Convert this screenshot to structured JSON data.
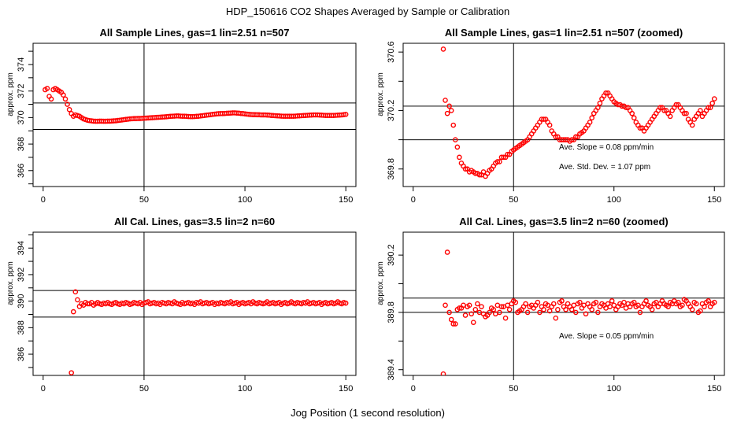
{
  "title": "HDP_150616  CO2 Shapes Averaged by Sample or Calibration",
  "xlabel": "Jog Position (1 second resolution)",
  "colors": {
    "points": "#ff0000",
    "lines": "#000000"
  },
  "chart_data": [
    {
      "type": "scatter",
      "title": "All Sample Lines, gas=1 lin=2.51 n=507",
      "ylabel": "approx. ppm",
      "xlim": [
        -5,
        155
      ],
      "ylim": [
        364.8,
        375.6
      ],
      "xticks": [
        "0",
        "50",
        "100",
        "150"
      ],
      "yticks": [
        "366",
        "368",
        "370",
        "372",
        "374"
      ],
      "vline": 50,
      "hlines": [
        369.1,
        371.1
      ],
      "annotations": [],
      "x": [
        1,
        2,
        3,
        4,
        5,
        6,
        7,
        8,
        9,
        10,
        11,
        12,
        13,
        14,
        15,
        16,
        17,
        18,
        19,
        20,
        21,
        22,
        23,
        24,
        25,
        26,
        27,
        28,
        29,
        30,
        31,
        32,
        33,
        34,
        35,
        36,
        37,
        38,
        39,
        40,
        41,
        42,
        43,
        44,
        45,
        46,
        47,
        48,
        49,
        50,
        51,
        52,
        53,
        54,
        55,
        56,
        57,
        58,
        59,
        60,
        61,
        62,
        63,
        64,
        65,
        66,
        67,
        68,
        69,
        70,
        71,
        72,
        73,
        74,
        75,
        76,
        77,
        78,
        79,
        80,
        81,
        82,
        83,
        84,
        85,
        86,
        87,
        88,
        89,
        90,
        91,
        92,
        93,
        94,
        95,
        96,
        97,
        98,
        99,
        100,
        101,
        102,
        103,
        104,
        105,
        106,
        107,
        108,
        109,
        110,
        111,
        112,
        113,
        114,
        115,
        116,
        117,
        118,
        119,
        120,
        121,
        122,
        123,
        124,
        125,
        126,
        127,
        128,
        129,
        130,
        131,
        132,
        133,
        134,
        135,
        136,
        137,
        138,
        139,
        140,
        141,
        142,
        143,
        144,
        145,
        146,
        147,
        148,
        149,
        150
      ],
      "y": [
        372.1,
        372.2,
        371.6,
        371.4,
        372.1,
        372.2,
        372.1,
        372.0,
        371.9,
        371.7,
        371.4,
        371.0,
        370.6,
        370.3,
        370.1,
        370.2,
        370.15,
        370.1,
        370.0,
        369.9,
        369.85,
        369.8,
        369.77,
        369.75,
        369.73,
        369.72,
        369.72,
        369.73,
        369.73,
        369.72,
        369.72,
        369.73,
        369.73,
        369.74,
        369.75,
        369.76,
        369.78,
        369.8,
        369.82,
        369.84,
        369.86,
        369.88,
        369.9,
        369.91,
        369.92,
        369.92,
        369.93,
        369.93,
        369.94,
        369.95,
        369.96,
        369.97,
        369.98,
        369.99,
        370.0,
        370.01,
        370.02,
        370.03,
        370.04,
        370.05,
        370.06,
        370.08,
        370.09,
        370.1,
        370.11,
        370.12,
        370.12,
        370.11,
        370.1,
        370.1,
        370.09,
        370.08,
        370.07,
        370.07,
        370.08,
        370.09,
        370.1,
        370.12,
        370.14,
        370.16,
        370.18,
        370.2,
        370.22,
        370.24,
        370.26,
        370.28,
        370.29,
        370.3,
        370.3,
        370.31,
        370.32,
        370.33,
        370.34,
        370.35,
        370.35,
        370.34,
        370.33,
        370.31,
        370.3,
        370.28,
        370.26,
        370.24,
        370.23,
        370.22,
        370.22,
        370.21,
        370.21,
        370.2,
        370.2,
        370.2,
        370.19,
        370.18,
        370.16,
        370.15,
        370.14,
        370.13,
        370.12,
        370.11,
        370.1,
        370.1,
        370.1,
        370.1,
        370.1,
        370.1,
        370.11,
        370.12,
        370.13,
        370.14,
        370.15,
        370.16,
        370.17,
        370.18,
        370.19,
        370.2,
        370.2,
        370.2,
        370.19,
        370.18,
        370.17,
        370.16,
        370.16,
        370.16,
        370.16,
        370.16,
        370.17,
        370.18,
        370.19,
        370.2,
        370.22,
        370.24
      ]
    },
    {
      "type": "scatter",
      "title": "All Sample Lines, gas=1 lin=2.51 n=507 (zoomed)",
      "ylabel": "approx. ppm",
      "xlim": [
        -5,
        155
      ],
      "ylim": [
        369.68,
        370.66
      ],
      "xticks": [
        "0",
        "50",
        "100",
        "150"
      ],
      "yticks": [
        "369.8",
        "370.2",
        "370.6"
      ],
      "vline": 50,
      "hlines": [
        370.0,
        370.23
      ],
      "annotations": [
        "Ave. Slope =  0.08  ppm/min",
        "Ave. Std. Dev. =  1.07  ppm"
      ],
      "x": [
        15,
        16,
        17,
        18,
        19,
        20,
        21,
        22,
        23,
        24,
        25,
        26,
        27,
        28,
        29,
        30,
        31,
        32,
        33,
        34,
        35,
        36,
        37,
        38,
        39,
        40,
        41,
        42,
        43,
        44,
        45,
        46,
        47,
        48,
        49,
        50,
        51,
        52,
        53,
        54,
        55,
        56,
        57,
        58,
        59,
        60,
        61,
        62,
        63,
        64,
        65,
        66,
        67,
        68,
        69,
        70,
        71,
        72,
        73,
        74,
        75,
        76,
        77,
        78,
        79,
        80,
        81,
        82,
        83,
        84,
        85,
        86,
        87,
        88,
        89,
        90,
        91,
        92,
        93,
        94,
        95,
        96,
        97,
        98,
        99,
        100,
        101,
        102,
        103,
        104,
        105,
        106,
        107,
        108,
        109,
        110,
        111,
        112,
        113,
        114,
        115,
        116,
        117,
        118,
        119,
        120,
        121,
        122,
        123,
        124,
        125,
        126,
        127,
        128,
        129,
        130,
        131,
        132,
        133,
        134,
        135,
        136,
        137,
        138,
        139,
        140,
        141,
        142,
        143,
        144,
        145,
        146,
        147,
        148,
        149,
        150
      ],
      "y": [
        370.62,
        370.27,
        370.18,
        370.23,
        370.2,
        370.1,
        370.0,
        369.95,
        369.88,
        369.84,
        369.82,
        369.8,
        369.8,
        369.78,
        369.79,
        369.78,
        369.77,
        369.77,
        369.76,
        369.76,
        369.78,
        369.75,
        369.77,
        369.79,
        369.8,
        369.82,
        369.84,
        369.85,
        369.85,
        369.88,
        369.88,
        369.88,
        369.9,
        369.9,
        369.92,
        369.93,
        369.94,
        369.95,
        369.96,
        369.97,
        369.98,
        369.99,
        370.0,
        370.02,
        370.04,
        370.06,
        370.08,
        370.1,
        370.12,
        370.14,
        370.14,
        370.14,
        370.12,
        370.1,
        370.06,
        370.04,
        370.02,
        370.02,
        370.0,
        370.0,
        370.0,
        370.0,
        370.0,
        369.99,
        370.0,
        370.0,
        370.02,
        370.02,
        370.04,
        370.05,
        370.06,
        370.08,
        370.1,
        370.12,
        370.15,
        370.18,
        370.2,
        370.22,
        370.25,
        370.28,
        370.3,
        370.32,
        370.32,
        370.3,
        370.28,
        370.26,
        370.25,
        370.24,
        370.24,
        370.23,
        370.23,
        370.22,
        370.22,
        370.2,
        370.18,
        370.15,
        370.12,
        370.1,
        370.08,
        370.08,
        370.06,
        370.08,
        370.1,
        370.12,
        370.14,
        370.16,
        370.18,
        370.2,
        370.22,
        370.22,
        370.2,
        370.2,
        370.18,
        370.16,
        370.2,
        370.22,
        370.24,
        370.24,
        370.22,
        370.2,
        370.18,
        370.18,
        370.14,
        370.12,
        370.1,
        370.14,
        370.16,
        370.18,
        370.2,
        370.16,
        370.18,
        370.2,
        370.22,
        370.22,
        370.25,
        370.28
      ]
    },
    {
      "type": "scatter",
      "title": "All Cal. Lines, gas=3.5 lin=2 n=60",
      "ylabel": "approx. ppm",
      "xlim": [
        -5,
        155
      ],
      "ylim": [
        384.4,
        395.2
      ],
      "xticks": [
        "0",
        "50",
        "100",
        "150"
      ],
      "yticks": [
        "386",
        "388",
        "390",
        "392",
        "394"
      ],
      "vline": 50,
      "hlines": [
        388.8,
        390.8
      ],
      "annotations": [],
      "x": [
        14,
        15,
        16,
        17,
        18,
        19,
        20,
        21,
        22,
        23,
        24,
        25,
        26,
        27,
        28,
        29,
        30,
        31,
        32,
        33,
        34,
        35,
        36,
        37,
        38,
        39,
        40,
        41,
        42,
        43,
        44,
        45,
        46,
        47,
        48,
        49,
        50,
        51,
        52,
        53,
        54,
        55,
        56,
        57,
        58,
        59,
        60,
        61,
        62,
        63,
        64,
        65,
        66,
        67,
        68,
        69,
        70,
        71,
        72,
        73,
        74,
        75,
        76,
        77,
        78,
        79,
        80,
        81,
        82,
        83,
        84,
        85,
        86,
        87,
        88,
        89,
        90,
        91,
        92,
        93,
        94,
        95,
        96,
        97,
        98,
        99,
        100,
        101,
        102,
        103,
        104,
        105,
        106,
        107,
        108,
        109,
        110,
        111,
        112,
        113,
        114,
        115,
        116,
        117,
        118,
        119,
        120,
        121,
        122,
        123,
        124,
        125,
        126,
        127,
        128,
        129,
        130,
        131,
        132,
        133,
        134,
        135,
        136,
        137,
        138,
        139,
        140,
        141,
        142,
        143,
        144,
        145,
        146,
        147,
        148,
        149,
        150
      ],
      "y": [
        384.6,
        389.2,
        390.7,
        390.1,
        389.6,
        389.8,
        389.7,
        389.9,
        389.8,
        389.8,
        389.9,
        389.7,
        389.8,
        389.9,
        389.8,
        389.75,
        389.85,
        389.8,
        389.9,
        389.8,
        389.75,
        389.85,
        389.9,
        389.8,
        389.75,
        389.85,
        389.8,
        389.9,
        389.85,
        389.75,
        389.8,
        389.9,
        389.85,
        389.8,
        389.9,
        389.75,
        389.85,
        389.9,
        389.95,
        389.8,
        389.85,
        389.9,
        389.8,
        389.85,
        389.75,
        389.9,
        389.85,
        389.8,
        389.9,
        389.85,
        389.8,
        389.95,
        389.85,
        389.8,
        389.75,
        389.9,
        389.8,
        389.85,
        389.9,
        389.8,
        389.85,
        389.75,
        389.9,
        389.85,
        389.95,
        389.8,
        389.85,
        389.9,
        389.8,
        389.85,
        389.9,
        389.75,
        389.85,
        389.8,
        389.9,
        389.85,
        389.8,
        389.9,
        389.85,
        389.95,
        389.8,
        389.85,
        389.9,
        389.75,
        389.85,
        389.9,
        389.8,
        389.85,
        389.9,
        389.8,
        389.95,
        389.85,
        389.8,
        389.9,
        389.85,
        389.8,
        389.85,
        389.95,
        389.8,
        389.85,
        389.9,
        389.8,
        389.85,
        389.9,
        389.75,
        389.85,
        389.9,
        389.8,
        389.85,
        389.95,
        389.85,
        389.8,
        389.9,
        389.85,
        389.8,
        389.9,
        389.85,
        389.95,
        389.8,
        389.85,
        389.9,
        389.8,
        389.85,
        389.9,
        389.75,
        389.85,
        389.9,
        389.8,
        389.85,
        389.9,
        389.8,
        389.85,
        389.95,
        389.85,
        389.8,
        389.9,
        389.85
      ]
    },
    {
      "type": "scatter",
      "title": "All Cal. Lines, gas=3.5 lin=2 n=60 (zoomed)",
      "ylabel": "approx. ppm",
      "xlim": [
        -5,
        155
      ],
      "ylim": [
        389.36,
        390.36
      ],
      "xticks": [
        "0",
        "50",
        "100",
        "150"
      ],
      "yticks": [
        "389.4",
        "389.8",
        "390.2"
      ],
      "vline": 50,
      "hlines": [
        389.8,
        389.9
      ],
      "annotations": [
        "Ave. Slope =  0.05  ppm/min"
      ],
      "x": [
        15,
        16,
        17,
        18,
        19,
        20,
        21,
        22,
        23,
        24,
        25,
        26,
        27,
        28,
        29,
        30,
        31,
        32,
        33,
        34,
        35,
        36,
        37,
        38,
        39,
        40,
        41,
        42,
        43,
        44,
        45,
        46,
        47,
        48,
        49,
        50,
        51,
        52,
        53,
        54,
        55,
        56,
        57,
        58,
        59,
        60,
        61,
        62,
        63,
        64,
        65,
        66,
        67,
        68,
        69,
        70,
        71,
        72,
        73,
        74,
        75,
        76,
        77,
        78,
        79,
        80,
        81,
        82,
        83,
        84,
        85,
        86,
        87,
        88,
        89,
        90,
        91,
        92,
        93,
        94,
        95,
        96,
        97,
        98,
        99,
        100,
        101,
        102,
        103,
        104,
        105,
        106,
        107,
        108,
        109,
        110,
        111,
        112,
        113,
        114,
        115,
        116,
        117,
        118,
        119,
        120,
        121,
        122,
        123,
        124,
        125,
        126,
        127,
        128,
        129,
        130,
        131,
        132,
        133,
        134,
        135,
        136,
        137,
        138,
        139,
        140,
        141,
        142,
        143,
        144,
        145,
        146,
        147,
        148,
        149,
        150
      ],
      "y": [
        389.37,
        389.85,
        390.22,
        389.8,
        389.75,
        389.72,
        389.72,
        389.82,
        389.83,
        389.83,
        389.85,
        389.78,
        389.84,
        389.85,
        389.79,
        389.73,
        389.82,
        389.86,
        389.8,
        389.84,
        389.79,
        389.77,
        389.78,
        389.8,
        389.83,
        389.82,
        389.79,
        389.85,
        389.8,
        389.84,
        389.84,
        389.76,
        389.85,
        389.82,
        389.86,
        389.88,
        389.87,
        389.8,
        389.81,
        389.82,
        389.84,
        389.86,
        389.8,
        389.84,
        389.85,
        389.83,
        389.85,
        389.87,
        389.8,
        389.84,
        389.82,
        389.86,
        389.85,
        389.81,
        389.84,
        389.86,
        389.76,
        389.82,
        389.87,
        389.88,
        389.84,
        389.82,
        389.86,
        389.84,
        389.82,
        389.85,
        389.8,
        389.86,
        389.87,
        389.83,
        389.85,
        389.79,
        389.86,
        389.84,
        389.82,
        389.86,
        389.87,
        389.8,
        389.84,
        389.86,
        389.85,
        389.83,
        389.86,
        389.84,
        389.88,
        389.85,
        389.82,
        389.84,
        389.86,
        389.85,
        389.87,
        389.83,
        389.86,
        389.84,
        389.86,
        389.87,
        389.84,
        389.85,
        389.8,
        389.84,
        389.86,
        389.88,
        389.85,
        389.84,
        389.82,
        389.86,
        389.87,
        389.84,
        389.86,
        389.88,
        389.86,
        389.85,
        389.84,
        389.87,
        389.86,
        389.88,
        389.86,
        389.87,
        389.84,
        389.85,
        389.89,
        389.88,
        389.86,
        389.84,
        389.82,
        389.87,
        389.86,
        389.8,
        389.81,
        389.86,
        389.84,
        389.87,
        389.88,
        389.84,
        389.86,
        389.87
      ]
    }
  ]
}
